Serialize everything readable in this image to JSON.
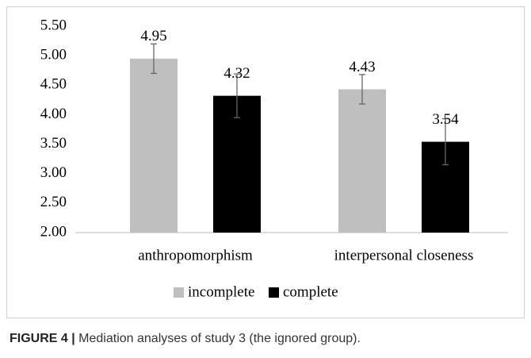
{
  "chart_data": {
    "type": "bar",
    "categories": [
      "anthropomorphism",
      "interpersonal closeness"
    ],
    "series": [
      {
        "name": "incomplete",
        "color": "#bfbfbf",
        "values": [
          4.95,
          4.43
        ],
        "errors": [
          0.25,
          0.25
        ]
      },
      {
        "name": "complete",
        "color": "#000000",
        "values": [
          4.32,
          3.54
        ],
        "errors": [
          0.37,
          0.39
        ]
      }
    ],
    "ylim": [
      2.0,
      5.5
    ],
    "yticks": [
      {
        "value": 2.0,
        "label": "2.00"
      },
      {
        "value": 2.5,
        "label": "2.50"
      },
      {
        "value": 3.0,
        "label": "3.00"
      },
      {
        "value": 3.5,
        "label": "3.50"
      },
      {
        "value": 4.0,
        "label": "4.00"
      },
      {
        "value": 4.5,
        "label": "4.50"
      },
      {
        "value": 5.0,
        "label": "5.00"
      },
      {
        "value": 5.5,
        "label": "5.50"
      }
    ],
    "grid": false,
    "legend": "bottom",
    "caption_label": "FIGURE 4 |",
    "caption": "Mediation analyses of study 3 (the ignored group)."
  }
}
